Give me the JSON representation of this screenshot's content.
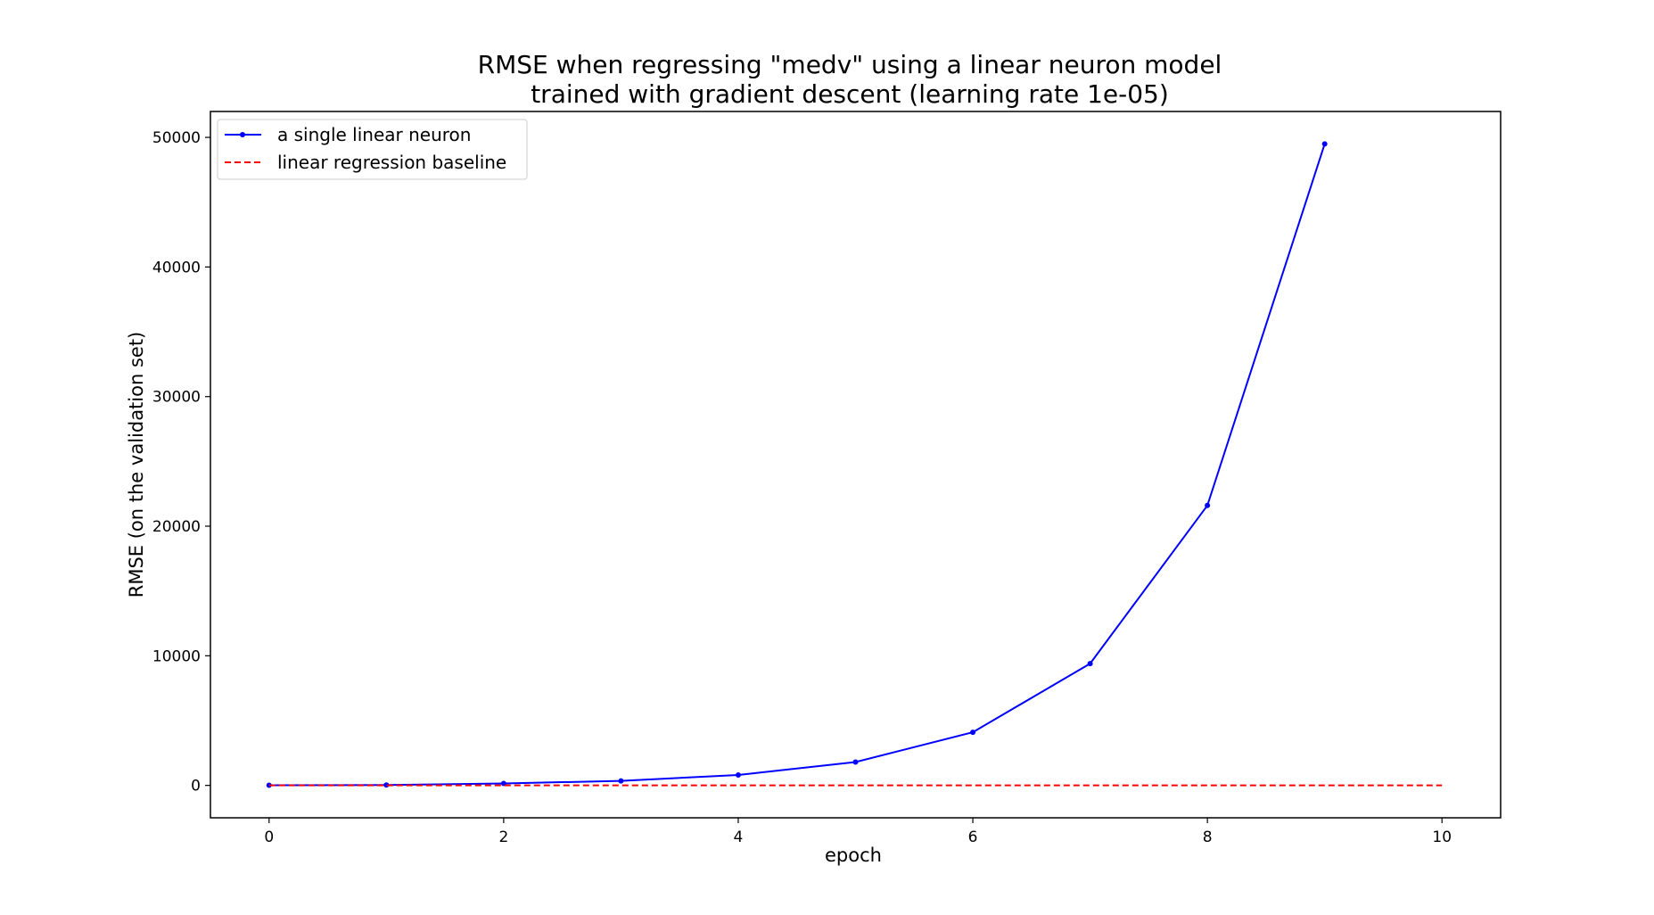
{
  "chart_data": {
    "type": "line",
    "title": [
      "RMSE when regressing \"medv\" using a linear neuron model",
      "trained with gradient descent (learning rate 1e-05)"
    ],
    "xlabel": "epoch",
    "ylabel": "RMSE (on the validation set)",
    "xlim": [
      -0.5,
      10.5
    ],
    "ylim": [
      -2500,
      52000
    ],
    "xticks": [
      0,
      2,
      4,
      6,
      8,
      10
    ],
    "yticks": [
      0,
      10000,
      20000,
      30000,
      40000,
      50000
    ],
    "grid": false,
    "legend_position": "top-left",
    "series": [
      {
        "name": "a single linear neuron",
        "color": "#0000ff",
        "style": "solid",
        "marker": "dot",
        "x": [
          0,
          1,
          2,
          3,
          4,
          5,
          6,
          7,
          8,
          9
        ],
        "values": [
          10,
          30,
          150,
          350,
          800,
          1800,
          4100,
          9400,
          21600,
          49500
        ]
      },
      {
        "name": "linear regression baseline",
        "color": "#ff0000",
        "style": "dashed",
        "marker": "none",
        "x": [
          0,
          10
        ],
        "values": [
          5,
          5
        ]
      }
    ]
  }
}
